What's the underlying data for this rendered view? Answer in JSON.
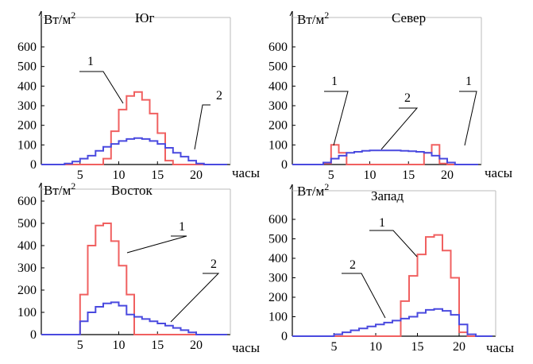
{
  "colors": {
    "series1": "#f06060",
    "series2": "#4a4adf",
    "frame": "#000000",
    "grid_edge": "#bbbbbb"
  },
  "chart_data": [
    {
      "type": "line",
      "title": "Юг",
      "ylabel": "Вт/м",
      "ylabel_sup": "2",
      "xlabel": "часы",
      "ylim": [
        0,
        650
      ],
      "xlim": [
        0,
        24
      ],
      "x_ticks": [
        "5",
        "10",
        "15",
        "20"
      ],
      "y_ticks": [
        "0",
        "100",
        "200",
        "300",
        "400",
        "500",
        "600"
      ],
      "annotations": [
        "1",
        "2"
      ],
      "x": [
        0,
        1,
        2,
        3,
        4,
        5,
        6,
        7,
        8,
        9,
        10,
        11,
        12,
        13,
        14,
        15,
        16,
        17,
        18,
        19,
        20,
        21,
        22,
        23,
        24
      ],
      "series": [
        {
          "name": "1",
          "values": [
            0,
            0,
            0,
            0,
            0,
            0,
            0,
            0,
            30,
            170,
            280,
            350,
            370,
            330,
            260,
            160,
            20,
            0,
            0,
            0,
            0,
            0,
            0,
            0,
            0
          ]
        },
        {
          "name": "2",
          "values": [
            0,
            0,
            0,
            5,
            15,
            30,
            45,
            70,
            90,
            105,
            120,
            130,
            135,
            130,
            120,
            105,
            85,
            60,
            40,
            20,
            5,
            0,
            0,
            0,
            0
          ]
        }
      ]
    },
    {
      "type": "line",
      "title": "Север",
      "ylabel": "Вт/м",
      "ylabel_sup": "2",
      "xlabel": "часы",
      "ylim": [
        0,
        650
      ],
      "xlim": [
        0,
        24
      ],
      "x_ticks": [
        "5",
        "10",
        "15",
        "20"
      ],
      "y_ticks": [
        "0",
        "100",
        "200",
        "300",
        "400",
        "500",
        "600"
      ],
      "annotations": [
        "1",
        "1",
        "2"
      ],
      "x": [
        0,
        1,
        2,
        3,
        4,
        5,
        6,
        7,
        8,
        9,
        10,
        11,
        12,
        13,
        14,
        15,
        16,
        17,
        18,
        19,
        20,
        21,
        22,
        23,
        24
      ],
      "series": [
        {
          "name": "1",
          "values": [
            0,
            0,
            0,
            0,
            5,
            100,
            60,
            0,
            0,
            0,
            0,
            0,
            0,
            0,
            0,
            0,
            0,
            60,
            100,
            5,
            0,
            0,
            0,
            0,
            0
          ]
        },
        {
          "name": "2",
          "values": [
            0,
            0,
            0,
            0,
            10,
            30,
            45,
            60,
            65,
            70,
            72,
            72,
            72,
            72,
            70,
            68,
            65,
            60,
            45,
            30,
            10,
            0,
            0,
            0,
            0
          ]
        }
      ]
    },
    {
      "type": "line",
      "title": "Восток",
      "ylabel": "Вт/м",
      "ylabel_sup": "2",
      "xlabel": "часы",
      "ylim": [
        0,
        650
      ],
      "xlim": [
        0,
        24
      ],
      "x_ticks": [
        "5",
        "10",
        "15",
        "20"
      ],
      "y_ticks": [
        "0",
        "100",
        "200",
        "300",
        "400",
        "500",
        "600"
      ],
      "annotations": [
        "1",
        "2"
      ],
      "x": [
        0,
        1,
        2,
        3,
        4,
        5,
        6,
        7,
        8,
        9,
        10,
        11,
        12,
        13,
        14,
        15,
        16,
        17,
        18,
        19,
        20,
        21,
        22,
        23,
        24
      ],
      "series": [
        {
          "name": "1",
          "values": [
            0,
            0,
            0,
            0,
            0,
            180,
            400,
            490,
            500,
            420,
            310,
            180,
            0,
            0,
            0,
            0,
            0,
            0,
            0,
            0,
            0,
            0,
            0,
            0,
            0
          ]
        },
        {
          "name": "2",
          "values": [
            0,
            0,
            0,
            0,
            0,
            60,
            100,
            125,
            140,
            145,
            130,
            90,
            80,
            70,
            60,
            50,
            40,
            30,
            20,
            10,
            0,
            0,
            0,
            0,
            0
          ]
        }
      ]
    },
    {
      "type": "line",
      "title": "Запад",
      "ylabel": "Вт/м",
      "ylabel_sup": "2",
      "xlabel": "часы",
      "ylim": [
        0,
        700
      ],
      "xlim": [
        0,
        24
      ],
      "x_ticks": [
        "5",
        "10",
        "15",
        "20"
      ],
      "y_ticks": [
        "0",
        "100",
        "200",
        "300",
        "400",
        "500",
        "600"
      ],
      "annotations": [
        "1",
        "2"
      ],
      "x": [
        0,
        1,
        2,
        3,
        4,
        5,
        6,
        7,
        8,
        9,
        10,
        11,
        12,
        13,
        14,
        15,
        16,
        17,
        18,
        19,
        20,
        21,
        22,
        23,
        24
      ],
      "series": [
        {
          "name": "1",
          "values": [
            0,
            0,
            0,
            0,
            0,
            0,
            0,
            0,
            0,
            0,
            0,
            0,
            0,
            180,
            310,
            420,
            510,
            520,
            440,
            300,
            20,
            0,
            0,
            0,
            0
          ]
        },
        {
          "name": "2",
          "values": [
            0,
            0,
            0,
            0,
            0,
            10,
            20,
            30,
            40,
            50,
            60,
            70,
            80,
            90,
            100,
            120,
            135,
            140,
            130,
            110,
            60,
            10,
            0,
            0,
            0
          ]
        }
      ]
    }
  ]
}
